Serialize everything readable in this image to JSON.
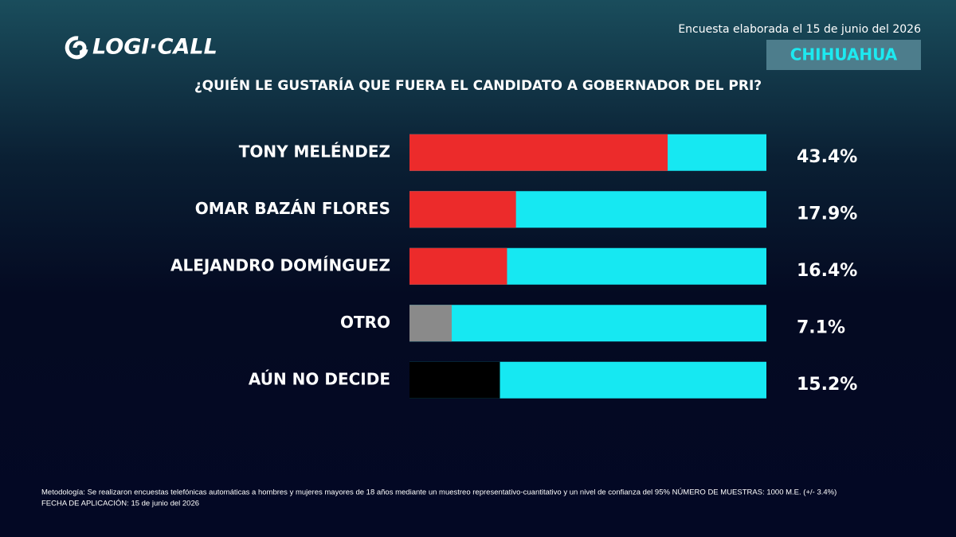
{
  "header": {
    "logo": "LOGI·CALL",
    "date": "Encuesta elaborada el 15 de junio del 2026",
    "region": "CHIHUAHUA"
  },
  "chart_data": {
    "type": "bar",
    "orientation": "horizontal",
    "title": "¿QUIÉN LE GUSTARÍA QUE FUERA EL CANDIDATO A GOBERNADOR DEL PRI?",
    "categories": [
      "TONY MELÉNDEZ",
      "OMAR BAZÁN FLORES",
      "ALEJANDRO DOMÍNGUEZ",
      "OTRO",
      "AÚN NO DECIDE"
    ],
    "values": [
      43.4,
      17.9,
      16.4,
      7.1,
      15.2
    ],
    "value_labels": [
      "43.4%",
      "17.9%",
      "16.4%",
      "7.1%",
      "15.2%"
    ],
    "colors": [
      "#ec2b2b",
      "#ec2b2b",
      "#ec2b2b",
      "#8a8a8a",
      "#000000"
    ],
    "track_color": "#16e8f2",
    "xlim": [
      0,
      60
    ]
  },
  "footer": {
    "lines": [
      "Metodología: Se realizaron encuestas telefónicas automáticas a hombres y mujeres mayores de 18 años mediante un muestreo representativo-cuantitativo y un nivel de confianza del 95% NÚMERO DE MUESTRAS: 1000 M.E. (+/- 3.4%)",
      "FECHA DE APLICACIÓN: 15 de junio del 2026"
    ]
  }
}
